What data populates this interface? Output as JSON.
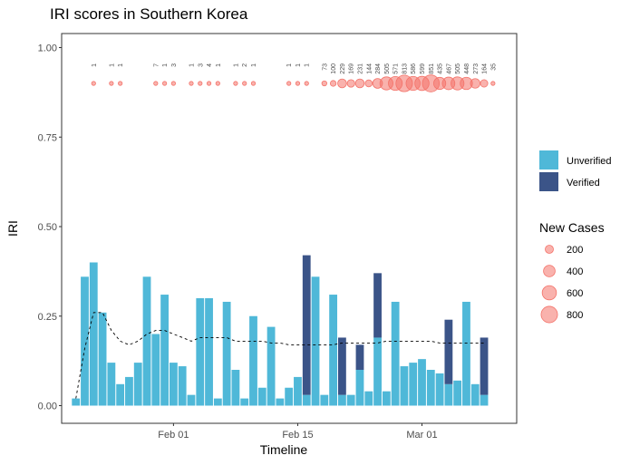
{
  "chart_data": {
    "type": "bar",
    "title": "IRI scores in Southern Korea",
    "xlabel": "Timeline",
    "ylabel": "IRI",
    "ylim": [
      0,
      1
    ],
    "yticks": [
      "0.00",
      "0.25",
      "0.50",
      "0.75",
      "1.00"
    ],
    "xtick_labels": [
      {
        "label": "Feb 01",
        "day": 12
      },
      {
        "label": "Feb 15",
        "day": 26
      },
      {
        "label": "Mar 01",
        "day": 40
      }
    ],
    "days": [
      1,
      2,
      3,
      4,
      5,
      6,
      7,
      8,
      9,
      10,
      11,
      12,
      13,
      14,
      15,
      16,
      17,
      18,
      19,
      20,
      21,
      22,
      23,
      24,
      25,
      26,
      27,
      28,
      29,
      30,
      31,
      32,
      33,
      34,
      35,
      36,
      37,
      38,
      39,
      40,
      41,
      42,
      43,
      44,
      45,
      46,
      47
    ],
    "series": [
      {
        "name": "Unverified",
        "color": "#4fb8d8",
        "values": [
          0.02,
          0.36,
          0.4,
          0.26,
          0.12,
          0.06,
          0.08,
          0.12,
          0.36,
          0.2,
          0.31,
          0.12,
          0.11,
          0.03,
          0.3,
          0.3,
          0.02,
          0.29,
          0.1,
          0.02,
          0.25,
          0.05,
          0.22,
          0.02,
          0.05,
          0.08,
          0.03,
          0.36,
          0.03,
          0.31,
          0.03,
          0.03,
          0.1,
          0.04,
          0.19,
          0.04,
          0.29,
          0.11,
          0.12,
          0.13,
          0.1,
          0.09,
          0.06,
          0.07,
          0.29,
          0.06,
          0.03
        ]
      },
      {
        "name": "Verified",
        "color": "#3b5488",
        "values": [
          0,
          0,
          0,
          0,
          0,
          0,
          0,
          0,
          0,
          0,
          0,
          0,
          0,
          0,
          0,
          0,
          0,
          0,
          0,
          0,
          0,
          0,
          0,
          0,
          0,
          0,
          0.39,
          0,
          0,
          0,
          0.16,
          0,
          0.07,
          0,
          0.18,
          0,
          0,
          0,
          0,
          0,
          0,
          0,
          0.18,
          0,
          0,
          0,
          0.16
        ]
      }
    ],
    "trend": {
      "style": "dashed",
      "values": [
        0.02,
        0.16,
        0.26,
        0.26,
        0.21,
        0.18,
        0.17,
        0.18,
        0.2,
        0.21,
        0.21,
        0.2,
        0.19,
        0.18,
        0.19,
        0.19,
        0.19,
        0.19,
        0.18,
        0.18,
        0.18,
        0.18,
        0.175,
        0.175,
        0.17,
        0.17,
        0.17,
        0.17,
        0.17,
        0.17,
        0.175,
        0.175,
        0.175,
        0.175,
        0.175,
        0.18,
        0.18,
        0.18,
        0.18,
        0.18,
        0.18,
        0.175,
        0.175,
        0.175,
        0.175,
        0.175,
        0.175
      ]
    },
    "new_cases": {
      "name": "New Cases",
      "y": 0.9,
      "color": "#f4736a",
      "points": [
        {
          "day": 3,
          "value": 1,
          "label": "1"
        },
        {
          "day": 5,
          "value": 1,
          "label": "1"
        },
        {
          "day": 6,
          "value": 1,
          "label": "1"
        },
        {
          "day": 10,
          "value": 7,
          "label": "7"
        },
        {
          "day": 11,
          "value": 1,
          "label": "1"
        },
        {
          "day": 12,
          "value": 3,
          "label": "3"
        },
        {
          "day": 14,
          "value": 1,
          "label": "1"
        },
        {
          "day": 15,
          "value": 3,
          "label": "3"
        },
        {
          "day": 16,
          "value": 4,
          "label": "4"
        },
        {
          "day": 17,
          "value": 1,
          "label": "1"
        },
        {
          "day": 19,
          "value": 1,
          "label": "1"
        },
        {
          "day": 20,
          "value": 2,
          "label": "2"
        },
        {
          "day": 21,
          "value": 1,
          "label": "1"
        },
        {
          "day": 25,
          "value": 1,
          "label": "1"
        },
        {
          "day": 26,
          "value": 1,
          "label": "1"
        },
        {
          "day": 27,
          "value": 1,
          "label": "1"
        },
        {
          "day": 29,
          "value": 73,
          "label": "73"
        },
        {
          "day": 30,
          "value": 100,
          "label": "100"
        },
        {
          "day": 31,
          "value": 229,
          "label": "229"
        },
        {
          "day": 32,
          "value": 169,
          "label": "169"
        },
        {
          "day": 33,
          "value": 231,
          "label": "231"
        },
        {
          "day": 34,
          "value": 144,
          "label": "144"
        },
        {
          "day": 35,
          "value": 284,
          "label": "284"
        },
        {
          "day": 36,
          "value": 505,
          "label": "505"
        },
        {
          "day": 37,
          "value": 571,
          "label": "571"
        },
        {
          "day": 38,
          "value": 813,
          "label": "813"
        },
        {
          "day": 39,
          "value": 586,
          "label": "586"
        },
        {
          "day": 40,
          "value": 599,
          "label": "599"
        },
        {
          "day": 41,
          "value": 851,
          "label": "851"
        },
        {
          "day": 42,
          "value": 435,
          "label": "435"
        },
        {
          "day": 43,
          "value": 467,
          "label": "467"
        },
        {
          "day": 44,
          "value": 505,
          "label": "505"
        },
        {
          "day": 45,
          "value": 448,
          "label": "448"
        },
        {
          "day": 46,
          "value": 273,
          "label": "273"
        },
        {
          "day": 47,
          "value": 164,
          "label": "164"
        },
        {
          "day": 48,
          "value": 35,
          "label": "35"
        }
      ]
    },
    "legend": {
      "placement": "right",
      "fill_items": [
        {
          "label": "Unverified",
          "color": "#4fb8d8"
        },
        {
          "label": "Verified",
          "color": "#3b5488"
        }
      ],
      "size_title": "New Cases",
      "size_items": [
        {
          "label": "200",
          "value": 200
        },
        {
          "label": "400",
          "value": 400
        },
        {
          "label": "600",
          "value": 600
        },
        {
          "label": "800",
          "value": 800
        }
      ]
    }
  }
}
